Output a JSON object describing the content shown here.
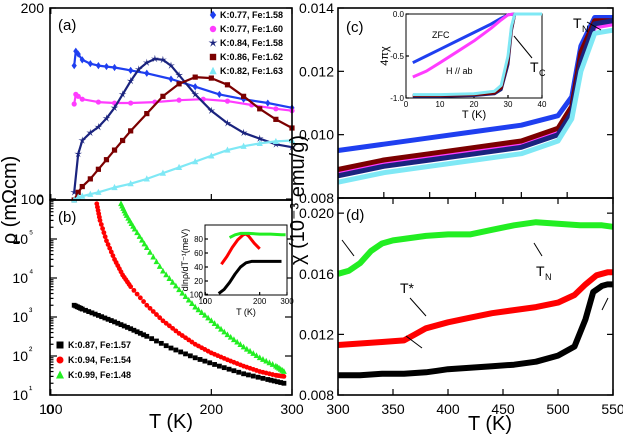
{
  "axis_titles": {
    "left_y": "ρ (mΩcm)",
    "right_y": "χ (10⁻³ emu/g)",
    "left_x": "T (K)",
    "right_x": "T (K)"
  },
  "chart_data": [
    {
      "panel": "a",
      "type": "line",
      "title": "(a)",
      "xlabel": "T (K)",
      "ylabel": "ρ (mΩcm)",
      "xlim": [
        0,
        300
      ],
      "ylim": [
        0,
        200
      ],
      "x_ticks": [
        "0",
        "100",
        "200",
        "300"
      ],
      "y_ticks": [
        "0",
        "100",
        "200"
      ],
      "legend_position": "top-right",
      "series": [
        {
          "name": "K:0.77, Fe:1.58",
          "color": "#1f3ff0",
          "marker": "diamond",
          "x": [
            30,
            32,
            35,
            40,
            50,
            60,
            70,
            80,
            100,
            120,
            150,
            180,
            210,
            240,
            270,
            300
          ],
          "y": [
            140,
            155,
            152,
            146,
            142,
            140,
            139,
            138,
            135,
            132,
            126,
            118,
            110,
            105,
            101,
            96
          ]
        },
        {
          "name": "K:0.77, Fe:1.60",
          "color": "#ff3cff",
          "marker": "circle",
          "x": [
            30,
            32,
            35,
            40,
            60,
            80,
            100,
            130,
            160,
            190,
            220,
            250,
            280,
            300
          ],
          "y": [
            100,
            110,
            108,
            105,
            102,
            101,
            101,
            102,
            104,
            105,
            103,
            99,
            95,
            93
          ]
        },
        {
          "name": "K:0.84, Fe:1.58",
          "color": "#1a237e",
          "marker": "star",
          "x": [
            30,
            35,
            40,
            50,
            60,
            70,
            80,
            90,
            100,
            110,
            120,
            130,
            140,
            150,
            160,
            180,
            200,
            220,
            240,
            260,
            280,
            300
          ],
          "y": [
            8,
            48,
            62,
            70,
            76,
            85,
            96,
            110,
            124,
            136,
            143,
            147,
            146,
            140,
            130,
            110,
            93,
            80,
            70,
            64,
            58,
            55
          ]
        },
        {
          "name": "K:0.86, Fe:1.62",
          "color": "#7b0000",
          "marker": "square",
          "x": [
            30,
            35,
            40,
            50,
            60,
            70,
            80,
            90,
            100,
            120,
            140,
            160,
            180,
            200,
            220,
            240,
            260,
            280,
            300
          ],
          "y": [
            0,
            8,
            14,
            22,
            32,
            42,
            52,
            62,
            72,
            90,
            108,
            121,
            128,
            127,
            120,
            108,
            95,
            84,
            75
          ]
        },
        {
          "name": "K:0.82, Fe:1.63",
          "color": "#7fe8f5",
          "marker": "triangle",
          "x": [
            30,
            35,
            40,
            50,
            60,
            80,
            100,
            120,
            140,
            160,
            180,
            200,
            220,
            240,
            260,
            280,
            300
          ],
          "y": [
            0,
            3,
            4,
            6,
            8,
            13,
            17,
            22,
            28,
            34,
            40,
            46,
            52,
            56,
            59,
            61,
            62
          ]
        }
      ]
    },
    {
      "panel": "b",
      "type": "scatter",
      "title": "(b)",
      "xlabel": "T (K)",
      "ylabel": "ρ (mΩcm)",
      "xlim": [
        0,
        300
      ],
      "ylim": [
        10,
        1000000
      ],
      "y_scale": "log",
      "x_ticks": [
        "0",
        "100",
        "200",
        "300"
      ],
      "y_ticks": [
        "10¹",
        "10²",
        "10³",
        "10⁴",
        "10⁵"
      ],
      "legend_position": "bottom-left",
      "series": [
        {
          "name": "K:0.87, Fe:1.57",
          "color": "#000000",
          "marker": "square",
          "x": [
            30,
            40,
            60,
            80,
            100,
            120,
            150,
            180,
            210,
            240,
            270,
            290
          ],
          "y": [
            2000,
            1600,
            1100,
            750,
            500,
            320,
            160,
            90,
            55,
            35,
            25,
            20
          ]
        },
        {
          "name": "K:0.94, Fe:1.54",
          "color": "#ff0000",
          "marker": "circle",
          "x": [
            58,
            62,
            70,
            80,
            90,
            100,
            120,
            140,
            160,
            180,
            200,
            220,
            240,
            260,
            280,
            290
          ],
          "y": [
            800000,
            300000,
            90000,
            30000,
            12000,
            6000,
            2000,
            800,
            380,
            200,
            120,
            80,
            55,
            40,
            32,
            30
          ]
        },
        {
          "name": "K:0.99, Fe:1.48",
          "color": "#22ee22",
          "marker": "triangle",
          "x": [
            88,
            95,
            105,
            120,
            140,
            160,
            180,
            200,
            220,
            240,
            260,
            280,
            290
          ],
          "y": [
            800000,
            400000,
            180000,
            60000,
            15000,
            5000,
            1800,
            800,
            350,
            170,
            90,
            55,
            40
          ]
        }
      ]
    },
    {
      "panel": "b-inset",
      "type": "line",
      "xlabel": "T (K)",
      "ylabel": "dlnρ/dT⁻¹(meV)",
      "xlim": [
        0,
        300
      ],
      "ylim": [
        0,
        100
      ],
      "x_ticks": [
        "0",
        "100",
        "200",
        "300"
      ],
      "y_ticks": [
        "0",
        "20",
        "40",
        "60",
        "80",
        "100"
      ],
      "series": [
        {
          "name": "K:0.87, Fe:1.57",
          "color": "#000000",
          "x": [
            50,
            70,
            90,
            110,
            130,
            150,
            170,
            200,
            240,
            280
          ],
          "y": [
            2,
            8,
            18,
            30,
            40,
            46,
            48,
            48,
            48,
            48
          ]
        },
        {
          "name": "K:0.94, Fe:1.54",
          "color": "#ff0000",
          "x": [
            60,
            80,
            100,
            120,
            140,
            150,
            160,
            180,
            200
          ],
          "y": [
            44,
            55,
            68,
            79,
            86,
            87,
            84,
            74,
            66
          ]
        },
        {
          "name": "K:0.99, Fe:1.48",
          "color": "#22ee22",
          "x": [
            90,
            110,
            130,
            160,
            200,
            240,
            280,
            295
          ],
          "y": [
            82,
            86,
            88,
            88,
            87,
            87,
            86,
            86
          ]
        }
      ]
    },
    {
      "panel": "c",
      "type": "line",
      "title": "(c)",
      "xlabel": "T (K)",
      "ylabel": "χ (10⁻³ emu/g)",
      "xlim": [
        0,
        300
      ],
      "ylim": [
        0.008,
        0.014
      ],
      "y_ticks": [
        "0.008",
        "0.010",
        "0.012",
        "0.014"
      ],
      "annotations": [
        "T_N"
      ],
      "series": [
        {
          "name": "blue",
          "color": "#1f3ff0",
          "x": [
            0,
            50,
            100,
            150,
            200,
            240,
            255,
            265,
            280,
            300
          ],
          "y": [
            0.0095,
            0.0097,
            0.0099,
            0.0101,
            0.0103,
            0.0106,
            0.0112,
            0.0128,
            0.0137,
            0.0137
          ]
        },
        {
          "name": "magenta",
          "color": "#ff3cff",
          "x": [
            0,
            50,
            100,
            150,
            200,
            240,
            255,
            265,
            280,
            300
          ],
          "y": [
            0.0088,
            0.0091,
            0.0093,
            0.0095,
            0.0097,
            0.0101,
            0.0108,
            0.0124,
            0.0134,
            0.0135
          ]
        },
        {
          "name": "darkred",
          "color": "#7b0000",
          "x": [
            0,
            50,
            100,
            150,
            200,
            240,
            255,
            265,
            280,
            300
          ],
          "y": [
            0.0089,
            0.0092,
            0.0094,
            0.0096,
            0.0098,
            0.0102,
            0.0109,
            0.0126,
            0.0136,
            0.0136
          ]
        },
        {
          "name": "navy",
          "color": "#1a237e",
          "x": [
            0,
            50,
            100,
            150,
            200,
            240,
            255,
            265,
            280,
            300
          ],
          "y": [
            0.0087,
            0.009,
            0.0092,
            0.0094,
            0.0096,
            0.01,
            0.0107,
            0.0123,
            0.0135,
            0.0136
          ]
        },
        {
          "name": "cyan",
          "color": "#7fe8f5",
          "x": [
            0,
            50,
            100,
            150,
            200,
            240,
            255,
            265,
            280,
            300
          ],
          "y": [
            0.0085,
            0.0088,
            0.009,
            0.0092,
            0.0094,
            0.0098,
            0.0105,
            0.012,
            0.0132,
            0.0133
          ]
        }
      ]
    },
    {
      "panel": "c-inset",
      "type": "line",
      "xlabel": "T (K)",
      "ylabel": "4πχ",
      "xlim": [
        0,
        40
      ],
      "ylim": [
        -1.0,
        0.0
      ],
      "x_ticks": [
        "0",
        "10",
        "20",
        "30",
        "40"
      ],
      "y_ticks": [
        "0.0",
        "-0.5",
        "-1.0"
      ],
      "annotations": [
        "ZFC",
        "H // ab",
        "T_C"
      ],
      "series": [
        {
          "name": "blue",
          "color": "#1f3ff0",
          "x": [
            2,
            6,
            10,
            15,
            20,
            25,
            28,
            30,
            32,
            40
          ],
          "y": [
            -0.58,
            -0.5,
            -0.42,
            -0.32,
            -0.22,
            -0.12,
            -0.05,
            -0.01,
            0,
            0
          ]
        },
        {
          "name": "magenta",
          "color": "#ff3cff",
          "x": [
            2,
            6,
            10,
            15,
            20,
            25,
            28,
            30,
            32,
            40
          ],
          "y": [
            -0.75,
            -0.68,
            -0.58,
            -0.45,
            -0.32,
            -0.17,
            -0.07,
            -0.01,
            0,
            0
          ]
        },
        {
          "name": "navy",
          "color": "#1a237e",
          "x": [
            2,
            10,
            20,
            26,
            28,
            30,
            31,
            32,
            40
          ],
          "y": [
            -0.98,
            -0.98,
            -0.97,
            -0.95,
            -0.9,
            -0.6,
            -0.2,
            0,
            0
          ]
        },
        {
          "name": "darkred",
          "color": "#7b0000",
          "x": [
            2,
            10,
            20,
            26,
            28,
            30,
            31,
            32,
            40
          ],
          "y": [
            -0.97,
            -0.97,
            -0.96,
            -0.94,
            -0.88,
            -0.55,
            -0.18,
            0,
            0
          ]
        },
        {
          "name": "cyan",
          "color": "#7fe8f5",
          "x": [
            2,
            10,
            20,
            26,
            28,
            30,
            31,
            32,
            40
          ],
          "y": [
            -0.96,
            -0.96,
            -0.95,
            -0.92,
            -0.85,
            -0.5,
            -0.15,
            0,
            0
          ]
        }
      ]
    },
    {
      "panel": "d",
      "type": "line",
      "title": "(d)",
      "xlabel": "T (K)",
      "ylabel": "χ (10⁻³ emu/g)",
      "xlim": [
        300,
        550
      ],
      "ylim": [
        0.008,
        0.021
      ],
      "x_ticks": [
        "300",
        "350",
        "400",
        "450",
        "500",
        "550"
      ],
      "y_ticks": [
        "0.008",
        "0.012",
        "0.016",
        "0.020"
      ],
      "annotations": [
        "T*",
        "T_N"
      ],
      "series": [
        {
          "name": "green",
          "color": "#22ee22",
          "x": [
            300,
            310,
            320,
            330,
            340,
            350,
            360,
            380,
            400,
            420,
            440,
            460,
            480,
            500,
            520,
            540,
            550
          ],
          "y": [
            0.016,
            0.0162,
            0.0167,
            0.0175,
            0.018,
            0.0182,
            0.0183,
            0.0185,
            0.0186,
            0.0186,
            0.0189,
            0.0192,
            0.0194,
            0.0193,
            0.0192,
            0.0192,
            0.0191
          ]
        },
        {
          "name": "red",
          "color": "#ff0000",
          "x": [
            300,
            320,
            340,
            360,
            370,
            380,
            400,
            420,
            440,
            460,
            480,
            500,
            515,
            525,
            535,
            545,
            550
          ],
          "y": [
            0.0113,
            0.0114,
            0.0115,
            0.0116,
            0.012,
            0.0124,
            0.0128,
            0.0131,
            0.0134,
            0.0136,
            0.0138,
            0.0141,
            0.0146,
            0.0153,
            0.0159,
            0.0161,
            0.0161
          ]
        },
        {
          "name": "black",
          "color": "#000000",
          "x": [
            300,
            320,
            340,
            360,
            380,
            390,
            400,
            420,
            440,
            460,
            480,
            500,
            515,
            525,
            532,
            540,
            545,
            550
          ],
          "y": [
            0.0093,
            0.0093,
            0.0094,
            0.0094,
            0.0095,
            0.0096,
            0.0097,
            0.0098,
            0.0099,
            0.01,
            0.0102,
            0.0106,
            0.0112,
            0.013,
            0.0148,
            0.0152,
            0.0153,
            0.0153
          ]
        }
      ]
    }
  ]
}
